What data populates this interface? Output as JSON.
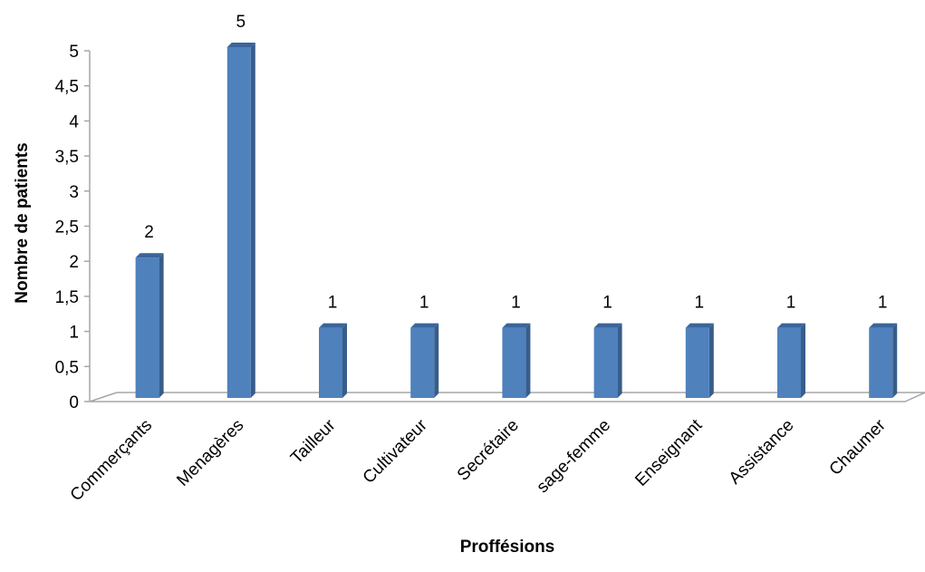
{
  "chart_data": {
    "type": "bar",
    "title": "",
    "xlabel": "Proffésions",
    "ylabel": "Nombre de patients",
    "categories": [
      "Commerçants",
      "Menagères",
      "Tailleur",
      "Cultivateur",
      "Secrétaire",
      "sage-femme",
      "Enseignant",
      "Assistance",
      "Chaumer"
    ],
    "values": [
      2,
      5,
      1,
      1,
      1,
      1,
      1,
      1,
      1
    ],
    "data_labels": [
      "2",
      "5",
      "1",
      "1",
      "1",
      "1",
      "1",
      "1",
      "1"
    ],
    "ylim": [
      0,
      5
    ],
    "yticks": [
      "0",
      "0,5",
      "1",
      "1,5",
      "2",
      "2,5",
      "3",
      "3,5",
      "4",
      "4,5",
      "5"
    ],
    "grid": false,
    "legend": "none",
    "style": "3d-column",
    "colors": {
      "bar_front": "#4f81bd",
      "bar_side": "#385d8a",
      "bar_top": "#3b659a",
      "axis": "#a6a6a6"
    }
  }
}
